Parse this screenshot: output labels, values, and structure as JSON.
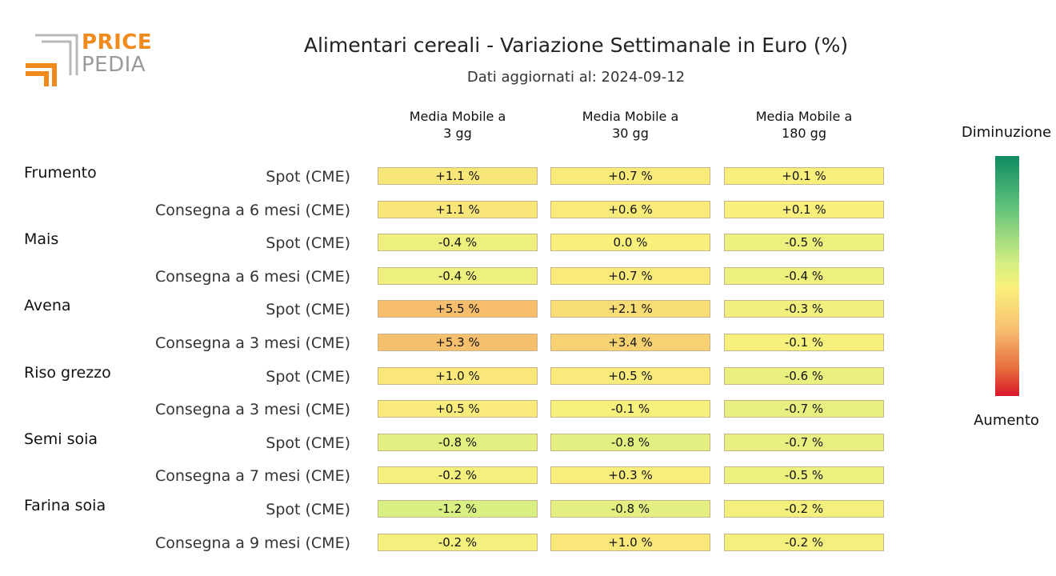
{
  "title": "Alimentari cereali - Variazione Settimanale in Euro (%)",
  "subtitle": "Dati aggiornati al: 2024-09-12",
  "logo": {
    "word1": "PRICE",
    "word2": "PEDIA",
    "color_orange": "#f08a1c",
    "color_gray": "#9a9a9a"
  },
  "legend": {
    "top_label": "Diminuzione",
    "bottom_label": "Aumento"
  },
  "chart_data": {
    "type": "heatmap",
    "title": "Alimentari cereali - Variazione Settimanale in Euro (%)",
    "columns": [
      "Media Mobile a\n3 gg",
      "Media Mobile a\n30 gg",
      "Media Mobile a\n180 gg"
    ],
    "groups": [
      {
        "name": "Frumento",
        "rows": [
          {
            "label": "Spot (CME)",
            "values": [
              1.1,
              0.7,
              0.1
            ],
            "text": [
              "+1.1 %",
              "+0.7 %",
              "+0.1 %"
            ]
          },
          {
            "label": "Consegna a 6 mesi (CME)",
            "values": [
              1.1,
              0.6,
              0.1
            ],
            "text": [
              "+1.1 %",
              "+0.6 %",
              "+0.1 %"
            ]
          }
        ]
      },
      {
        "name": "Mais",
        "rows": [
          {
            "label": "Spot (CME)",
            "values": [
              -0.4,
              0.0,
              -0.5
            ],
            "text": [
              "-0.4 %",
              "0.0 %",
              "-0.5 %"
            ]
          },
          {
            "label": "Consegna a 6 mesi (CME)",
            "values": [
              -0.4,
              0.7,
              -0.4
            ],
            "text": [
              "-0.4 %",
              "+0.7 %",
              "-0.4 %"
            ]
          }
        ]
      },
      {
        "name": "Avena",
        "rows": [
          {
            "label": "Spot (CME)",
            "values": [
              5.5,
              2.1,
              -0.3
            ],
            "text": [
              "+5.5 %",
              "+2.1 %",
              "-0.3 %"
            ]
          },
          {
            "label": "Consegna a 3 mesi (CME)",
            "values": [
              5.3,
              3.4,
              -0.1
            ],
            "text": [
              "+5.3 %",
              "+3.4 %",
              "-0.1 %"
            ]
          }
        ]
      },
      {
        "name": "Riso grezzo",
        "rows": [
          {
            "label": "Spot (CME)",
            "values": [
              1.0,
              0.5,
              -0.6
            ],
            "text": [
              "+1.0 %",
              "+0.5 %",
              "-0.6 %"
            ]
          },
          {
            "label": "Consegna a 3 mesi (CME)",
            "values": [
              0.5,
              -0.1,
              -0.7
            ],
            "text": [
              "+0.5 %",
              "-0.1 %",
              "-0.7 %"
            ]
          }
        ]
      },
      {
        "name": "Semi soia",
        "rows": [
          {
            "label": "Spot (CME)",
            "values": [
              -0.8,
              -0.8,
              -0.7
            ],
            "text": [
              "-0.8 %",
              "-0.8 %",
              "-0.7 %"
            ]
          },
          {
            "label": "Consegna a 7 mesi (CME)",
            "values": [
              -0.2,
              0.3,
              -0.5
            ],
            "text": [
              "-0.2 %",
              "+0.3 %",
              "-0.5 %"
            ]
          }
        ]
      },
      {
        "name": "Farina soia",
        "rows": [
          {
            "label": "Spot (CME)",
            "values": [
              -1.2,
              -0.8,
              -0.2
            ],
            "text": [
              "-1.2 %",
              "-0.8 %",
              "-0.2 %"
            ]
          },
          {
            "label": "Consegna a 9 mesi (CME)",
            "values": [
              -0.2,
              1.0,
              -0.2
            ],
            "text": [
              "-0.2 %",
              "+1.0 %",
              "-0.2 %"
            ]
          }
        ]
      }
    ],
    "colors": {
      "decrease": "#0f8a5f",
      "neutral": "#f9f07c",
      "increase": "#d8172a"
    }
  }
}
